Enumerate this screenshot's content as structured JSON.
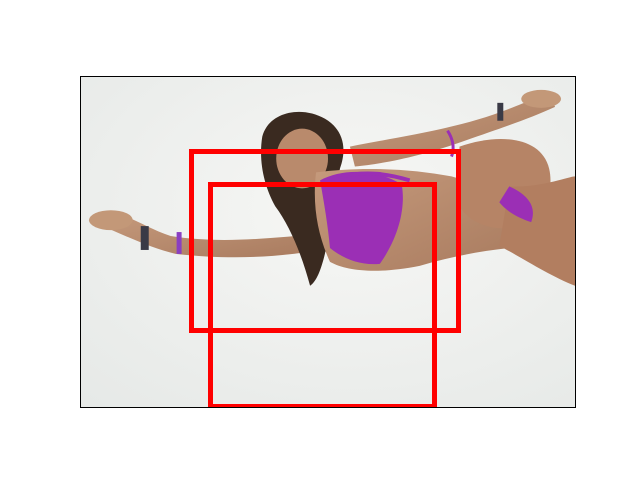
{
  "figure": {
    "background": "#ffffff",
    "frame_color": "#000000"
  },
  "photo": {
    "subject": "swimmer-underwater-purple-bikini",
    "water_color": "#eef0ee",
    "skin_color": "#b98a6c",
    "swimwear_color": "#9b2fb5",
    "hair_color": "#3a2a20"
  },
  "annotations": {
    "box_color": "#ff0000",
    "boxes": [
      "outer-box",
      "inner-box"
    ]
  }
}
